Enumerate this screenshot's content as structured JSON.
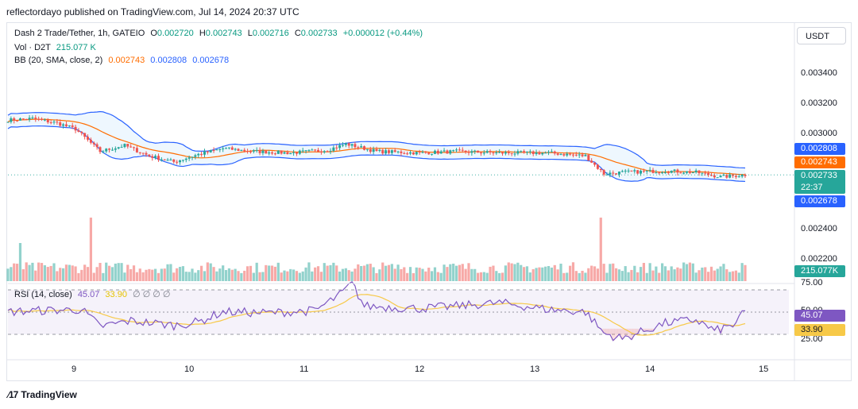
{
  "publisher_line": "reflectordayo published on TradingView.com, Jul 14, 2024 20:37 UTC",
  "legend": {
    "symbol": "Dash 2 Trade/Tether, 1h, GATEIO",
    "o_label": "O",
    "o": "0.002720",
    "h_label": "H",
    "h": "0.002743",
    "l_label": "L",
    "l": "0.002716",
    "c_label": "C",
    "c": "0.002733",
    "change": "+0.000012 (+0.44%)",
    "vol_label": "Vol · D2T",
    "vol": "215.077 K",
    "bb_label": "BB (20, SMA, close, 2)",
    "bb_basis": "0.002743",
    "bb_upper": "0.002808",
    "bb_lower": "0.002678",
    "rsi_label": "RSI (14, close)",
    "rsi": "45.07",
    "rsi_ma": "33.90",
    "rsi_zeros": "∅ ∅ ∅ ∅"
  },
  "currency_button": "USDT",
  "price_axis": [
    "0.003400",
    "0.003200",
    "0.003000",
    "0.002400",
    "0.002200"
  ],
  "rsi_axis": [
    "75.00",
    "50.00",
    "25.00"
  ],
  "badges": {
    "bb_upper": "0.002808",
    "bb_basis": "0.002743",
    "last_price": "0.002733",
    "countdown": "22:37",
    "bb_lower": "0.002678",
    "volume": "215.077K",
    "rsi": "45.07",
    "rsi_ma": "33.90"
  },
  "time_axis": [
    "9",
    "10",
    "11",
    "12",
    "13",
    "14",
    "15"
  ],
  "brand": "TradingView",
  "colors": {
    "up": "#26a69a",
    "down": "#ef5350",
    "bb": "#2962ff",
    "basis": "#ff6d00",
    "rsi": "#7e57c2",
    "rsi_ma": "#f7c948"
  },
  "chart_data": {
    "type": "candlestick",
    "symbol": "Dash 2 Trade/Tether",
    "interval": "1h",
    "price_keypoints_close": [
      [
        0,
        0.0031
      ],
      [
        8,
        0.00311
      ],
      [
        16,
        0.00308
      ],
      [
        22,
        0.00304
      ],
      [
        30,
        0.00289
      ],
      [
        38,
        0.00293
      ],
      [
        46,
        0.00286
      ],
      [
        54,
        0.00282
      ],
      [
        62,
        0.00287
      ],
      [
        70,
        0.00291
      ],
      [
        80,
        0.00289
      ],
      [
        92,
        0.00288
      ],
      [
        104,
        0.0029
      ],
      [
        110,
        0.00294
      ],
      [
        120,
        0.00289
      ],
      [
        134,
        0.00288
      ],
      [
        146,
        0.00289
      ],
      [
        160,
        0.00288
      ],
      [
        176,
        0.00288
      ],
      [
        188,
        0.00286
      ],
      [
        194,
        0.00274
      ],
      [
        200,
        0.00275
      ],
      [
        214,
        0.00276
      ],
      [
        224,
        0.00275
      ],
      [
        232,
        0.00272
      ],
      [
        240,
        0.002733
      ]
    ],
    "volume_spikes": [
      [
        27,
        "high"
      ],
      [
        193,
        "high"
      ]
    ],
    "rsi_keypoints": [
      [
        0,
        45
      ],
      [
        10,
        46
      ],
      [
        24,
        47
      ],
      [
        30,
        32
      ],
      [
        40,
        37
      ],
      [
        54,
        33
      ],
      [
        62,
        36
      ],
      [
        70,
        45
      ],
      [
        84,
        44
      ],
      [
        100,
        46
      ],
      [
        108,
        60
      ],
      [
        112,
        70
      ],
      [
        116,
        50
      ],
      [
        134,
        48
      ],
      [
        146,
        50
      ],
      [
        160,
        53
      ],
      [
        176,
        47
      ],
      [
        188,
        45
      ],
      [
        194,
        26
      ],
      [
        200,
        21
      ],
      [
        214,
        35
      ],
      [
        224,
        38
      ],
      [
        230,
        28
      ],
      [
        236,
        33
      ],
      [
        240,
        45
      ]
    ],
    "x_ticks": [
      "9",
      "10",
      "11",
      "12",
      "13",
      "14",
      "15"
    ]
  }
}
